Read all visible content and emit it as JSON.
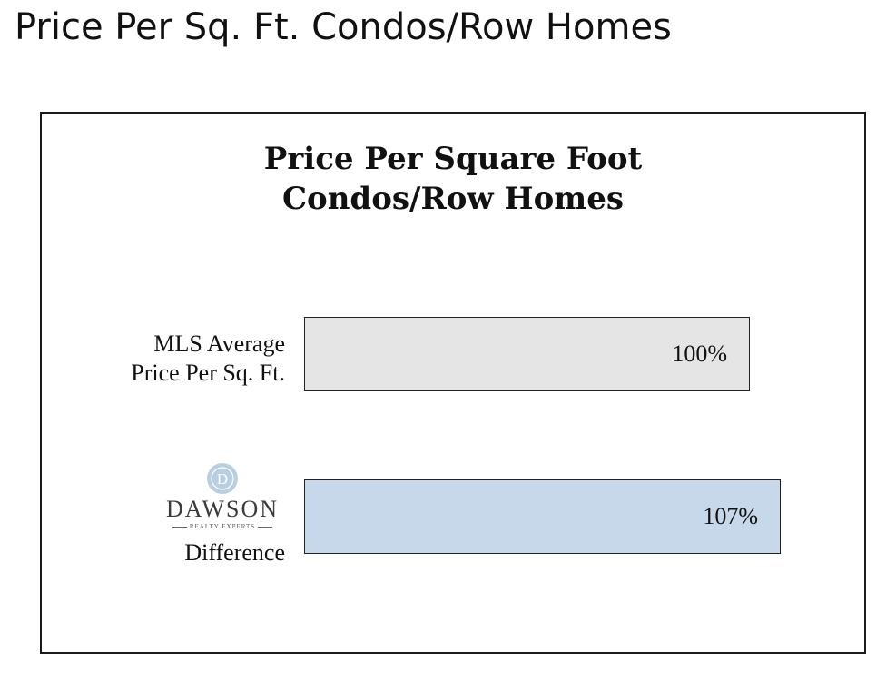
{
  "slide": {
    "title": "Price Per Sq. Ft. Condos/Row Homes"
  },
  "logo": {
    "monogram": "D",
    "wordmark": "DAWSON",
    "tagline": "REALTY EXPERTS"
  },
  "chart_data": {
    "type": "bar",
    "orientation": "horizontal",
    "title": [
      "Price Per Square Foot",
      "Condos/Row Homes"
    ],
    "categories": [
      "MLS Average Price Per Sq. Ft.",
      "DAWSON REALTY EXPERTS Difference"
    ],
    "category_label_lines": [
      [
        "MLS Average",
        "Price Per Sq. Ft."
      ],
      [
        "Difference"
      ]
    ],
    "values": [
      100,
      107
    ],
    "value_labels": [
      "100%",
      "107%"
    ],
    "colors": [
      "#e5e5e5",
      "#c6d8ea"
    ],
    "grid": false,
    "legend": "none"
  }
}
